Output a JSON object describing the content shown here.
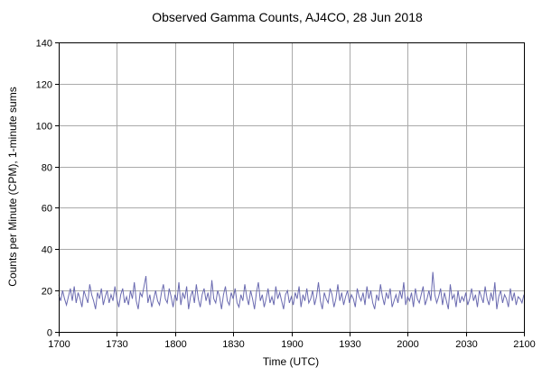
{
  "chart_data": {
    "type": "line",
    "title": "Observed Gamma Counts, AJ4CO, 28 Jun 2018",
    "xlabel": "Time (UTC)",
    "ylabel": "Counts per Minute (CPM), 1-minute sums",
    "x_tick_labels": [
      "1700",
      "1730",
      "1800",
      "1830",
      "1900",
      "1930",
      "2000",
      "2030",
      "2100"
    ],
    "y_ticks": [
      0,
      20,
      40,
      60,
      80,
      100,
      120,
      140
    ],
    "ylim": [
      0,
      140
    ],
    "grid": true,
    "legend": "none",
    "line_color": "#6a6ab0",
    "grid_color": "#aaaaaa",
    "border_color": "#000000",
    "values": [
      18,
      15,
      20,
      16,
      13,
      17,
      21,
      15,
      22,
      14,
      19,
      16,
      12,
      20,
      17,
      14,
      23,
      18,
      15,
      11,
      19,
      16,
      21,
      13,
      17,
      20,
      14,
      18,
      15,
      22,
      16,
      12,
      18,
      21,
      14,
      17,
      13,
      20,
      16,
      24,
      15,
      11,
      19,
      17,
      22,
      27,
      14,
      18,
      12,
      16,
      20,
      15,
      13,
      19,
      23,
      16,
      14,
      21,
      17,
      12,
      18,
      15,
      24,
      13,
      19,
      16,
      22,
      11,
      17,
      20,
      14,
      23,
      16,
      12,
      18,
      21,
      15,
      19,
      13,
      25,
      16,
      14,
      20,
      17,
      11,
      18,
      22,
      15,
      13,
      19,
      16,
      21,
      14,
      12,
      18,
      15,
      23,
      17,
      13,
      20,
      16,
      11,
      19,
      24,
      15,
      18,
      12,
      16,
      21,
      14,
      17,
      13,
      22,
      16,
      19,
      15,
      11,
      18,
      20,
      14,
      17,
      13,
      19,
      16,
      22,
      12,
      18,
      15,
      21,
      14,
      16,
      20,
      13,
      17,
      24,
      15,
      11,
      19,
      16,
      14,
      21,
      18,
      12,
      16,
      23,
      15,
      19,
      13,
      17,
      20,
      14,
      18,
      16,
      12,
      21,
      17,
      15,
      19,
      13,
      22,
      16,
      20,
      14,
      11,
      18,
      15,
      23,
      17,
      13,
      19,
      16,
      21,
      12,
      15,
      18,
      14,
      20,
      16,
      24,
      13,
      17,
      15,
      19,
      12,
      21,
      16,
      14,
      18,
      22,
      13,
      16,
      20,
      15,
      29,
      18,
      14,
      17,
      21,
      13,
      19,
      15,
      11,
      23,
      16,
      18,
      12,
      20,
      14,
      17,
      15,
      19,
      13,
      16,
      21,
      15,
      18,
      12,
      20,
      17,
      14,
      22,
      16,
      13,
      19,
      15,
      24,
      11,
      17,
      20,
      14,
      18,
      16,
      12,
      21,
      15,
      19,
      13,
      17,
      16,
      14,
      18
    ]
  }
}
